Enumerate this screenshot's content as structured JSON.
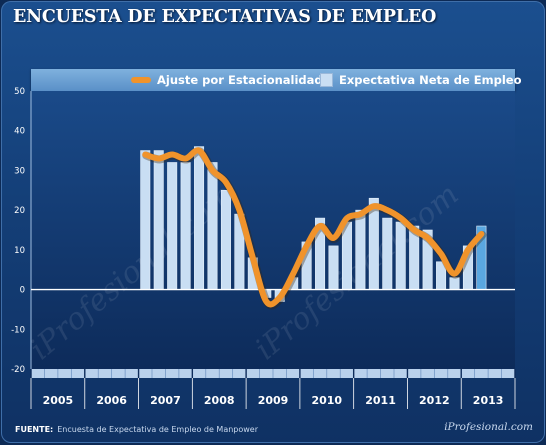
{
  "title": "ENCUESTA DE EXPECTATIVAS DE EMPLEO",
  "source_label": "FUENTE:",
  "source_text": "Encuesta de Expectativa de Empleo de Manpower",
  "site_credit": "iProfesional.com",
  "watermark": "iProfesional.com",
  "colors": {
    "line": "#f0932b",
    "bar": "#c9def3",
    "bar_last": "#5aa7e0",
    "background": "#143f78"
  },
  "chart_data": {
    "type": "bar",
    "title": "ENCUESTA DE EXPECTATIVAS DE EMPLEO",
    "legend_placement": "top-right",
    "grid": false,
    "ylim": [
      -20,
      50
    ],
    "yticks": [
      -20,
      -10,
      0,
      10,
      20,
      30,
      40,
      50
    ],
    "years": [
      "2005",
      "2006",
      "2007",
      "2008",
      "2009",
      "2010",
      "2011",
      "2012",
      "2013"
    ],
    "quarter_range": [
      "2005 Q1",
      "2013 Q4"
    ],
    "series": [
      {
        "name": "Expectativa Neta de Empleo",
        "type": "bar",
        "start": "2007 Q1",
        "values": [
          35,
          35,
          32,
          32,
          36,
          32,
          25,
          19,
          8,
          -2,
          -3,
          3,
          12,
          18,
          11,
          17,
          20,
          23,
          18,
          17,
          16,
          15,
          7,
          3,
          11,
          16
        ]
      },
      {
        "name": "Ajuste por Estacionalidad",
        "type": "line",
        "start": "2007 Q1",
        "values": [
          34,
          33,
          34,
          33,
          35,
          30,
          27,
          20,
          8,
          -3,
          -2,
          4,
          11,
          16,
          13,
          18,
          19,
          21,
          20,
          18,
          15,
          13,
          9,
          4,
          10,
          14
        ]
      }
    ]
  }
}
